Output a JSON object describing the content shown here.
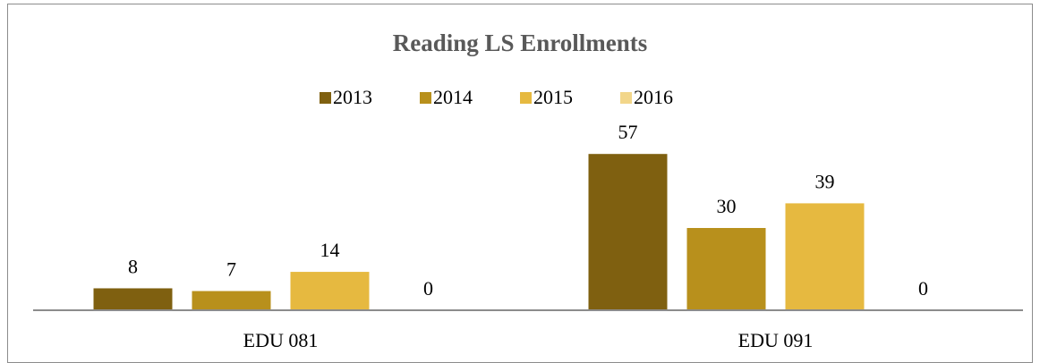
{
  "chart_data": {
    "type": "bar",
    "title": "Reading LS Enrollments",
    "categories": [
      "EDU 081",
      "EDU 091"
    ],
    "series": [
      {
        "name": "2013",
        "color": "#7f6010",
        "values": [
          8,
          57
        ]
      },
      {
        "name": "2014",
        "color": "#b8901c",
        "values": [
          7,
          30
        ]
      },
      {
        "name": "2015",
        "color": "#e6b940",
        "values": [
          14,
          39
        ]
      },
      {
        "name": "2016",
        "color": "#f2d68a",
        "values": [
          0,
          0
        ]
      }
    ],
    "ylim": [
      0,
      60
    ],
    "legend": "top",
    "grid": false
  }
}
